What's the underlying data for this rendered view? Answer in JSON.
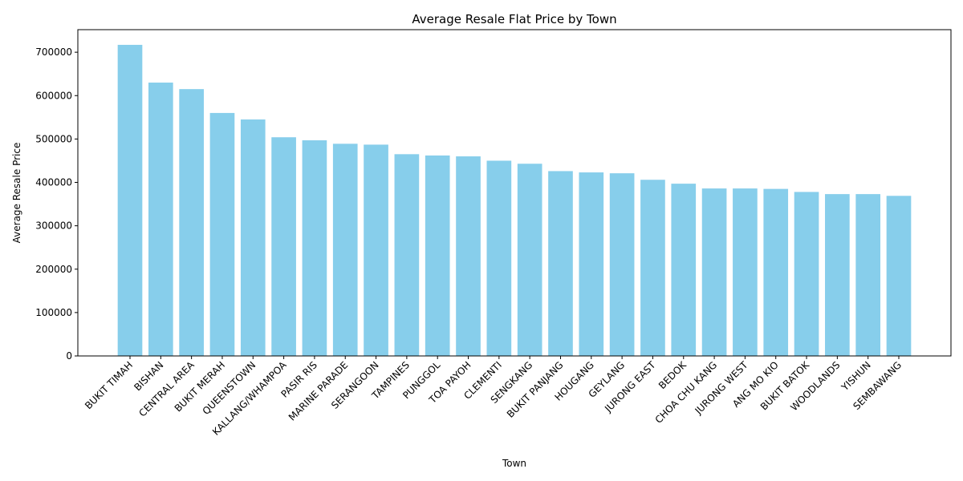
{
  "chart_data": {
    "type": "bar",
    "title": "Average Resale Flat Price by Town",
    "xlabel": "Town",
    "ylabel": "Average Resale Price",
    "categories": [
      "BUKIT TIMAH",
      "BISHAN",
      "CENTRAL AREA",
      "BUKIT MERAH",
      "QUEENSTOWN",
      "KALLANG/WHAMPOA",
      "PASIR RIS",
      "MARINE PARADE",
      "SERANGOON",
      "TAMPINES",
      "PUNGGOL",
      "TOA PAYOH",
      "CLEMENTI",
      "SENGKANG",
      "BUKIT PANJANG",
      "HOUGANG",
      "GEYLANG",
      "JURONG EAST",
      "BEDOK",
      "CHOA CHU KANG",
      "JURONG WEST",
      "ANG MO KIO",
      "BUKIT BATOK",
      "WOODLANDS",
      "YISHUN",
      "SEMBAWANG"
    ],
    "values": [
      717000,
      630000,
      615000,
      560000,
      545000,
      504000,
      497000,
      489000,
      487000,
      465000,
      462000,
      460000,
      450000,
      443000,
      426000,
      423000,
      421000,
      406000,
      397000,
      386000,
      386000,
      385000,
      378000,
      373000,
      373000,
      369000
    ],
    "ylim": [
      0,
      752000
    ],
    "yticks": [
      "0",
      "100000",
      "200000",
      "300000",
      "400000",
      "500000",
      "600000",
      "700000"
    ],
    "bar_color": "#87ceeb",
    "grid": false,
    "legend": "none"
  }
}
